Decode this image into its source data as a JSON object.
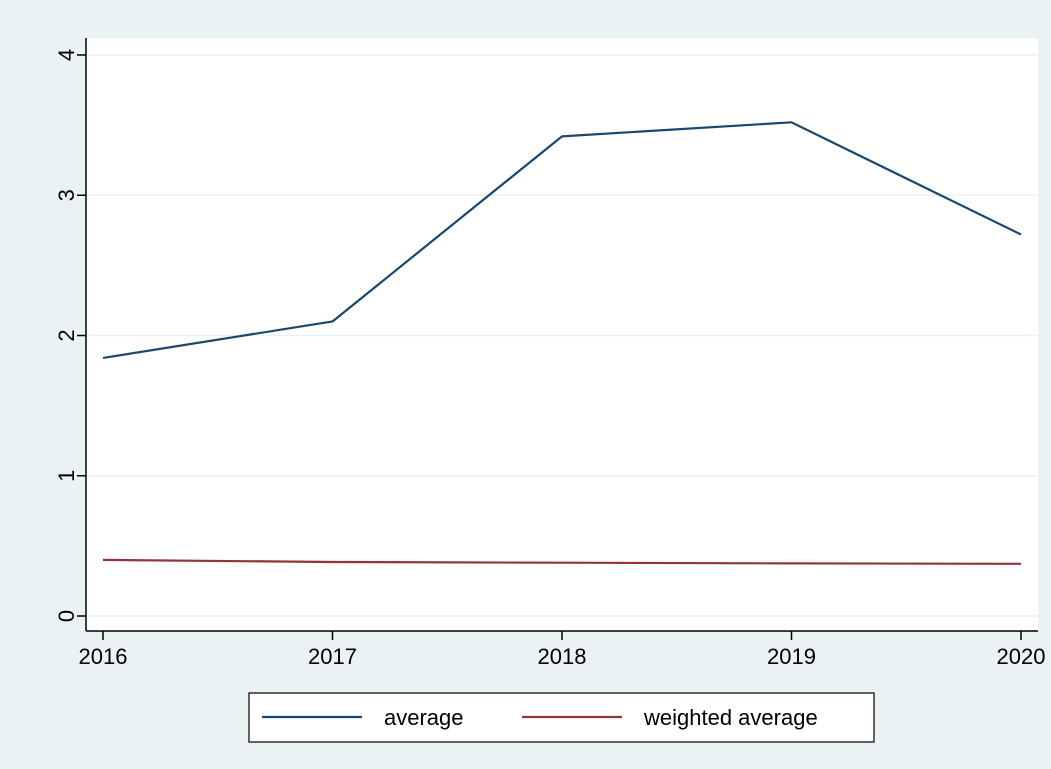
{
  "chart_data": {
    "type": "line",
    "title": "",
    "xlabel": "",
    "ylabel": "",
    "x": [
      2016,
      2017,
      2018,
      2019,
      2020
    ],
    "xticks": [
      "2016",
      "2017",
      "2018",
      "2019",
      "2020"
    ],
    "yticks": [
      "0",
      "1",
      "2",
      "3",
      "4"
    ],
    "xlim": [
      2016,
      2020
    ],
    "ylim": [
      0,
      4
    ],
    "grid": true,
    "legend_position": "bottom",
    "series": [
      {
        "name": "average",
        "color": "#1a476f",
        "values": [
          1.84,
          2.1,
          3.42,
          3.52,
          2.72
        ]
      },
      {
        "name": "weighted average",
        "color": "#90353b",
        "values": [
          0.4,
          0.385,
          0.38,
          0.375,
          0.372
        ]
      }
    ]
  },
  "colors": {
    "background": "#eaf2f3",
    "plot_background": "#ffffff",
    "grid": "#eaf2f3",
    "axis": "#000000"
  }
}
